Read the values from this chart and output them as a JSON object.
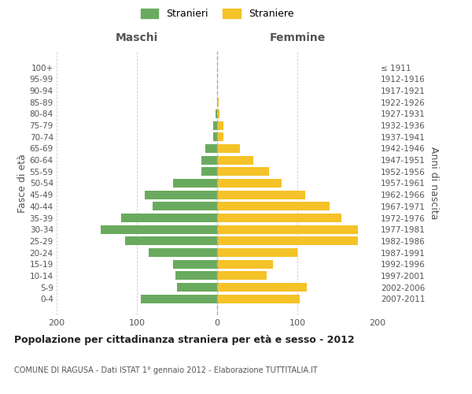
{
  "age_groups": [
    "0-4",
    "5-9",
    "10-14",
    "15-19",
    "20-24",
    "25-29",
    "30-34",
    "35-39",
    "40-44",
    "45-49",
    "50-54",
    "55-59",
    "60-64",
    "65-69",
    "70-74",
    "75-79",
    "80-84",
    "85-89",
    "90-94",
    "95-99",
    "100+"
  ],
  "birth_years": [
    "2007-2011",
    "2002-2006",
    "1997-2001",
    "1992-1996",
    "1987-1991",
    "1982-1986",
    "1977-1981",
    "1972-1976",
    "1967-1971",
    "1962-1966",
    "1957-1961",
    "1952-1956",
    "1947-1951",
    "1942-1946",
    "1937-1941",
    "1932-1936",
    "1927-1931",
    "1922-1926",
    "1917-1921",
    "1912-1916",
    "≤ 1911"
  ],
  "maschi": [
    95,
    50,
    52,
    55,
    85,
    115,
    145,
    120,
    80,
    90,
    55,
    20,
    20,
    15,
    5,
    5,
    2,
    0,
    0,
    0,
    0
  ],
  "femmine": [
    103,
    112,
    62,
    70,
    100,
    175,
    175,
    155,
    140,
    110,
    80,
    65,
    45,
    28,
    8,
    8,
    3,
    2,
    0,
    0,
    0
  ],
  "male_color": "#6aaa5e",
  "female_color": "#f5c228",
  "background_color": "#ffffff",
  "grid_color": "#cccccc",
  "title": "Popolazione per cittadinanza straniera per età e sesso - 2012",
  "subtitle": "COMUNE DI RAGUSA - Dati ISTAT 1° gennaio 2012 - Elaborazione TUTTITALIA.IT",
  "ylabel_left": "Fasce di età",
  "ylabel_right": "Anni di nascita",
  "xlabel_left": "Maschi",
  "xlabel_right": "Femmine",
  "legend_male": "Stranieri",
  "legend_female": "Straniere",
  "xlim": 200
}
